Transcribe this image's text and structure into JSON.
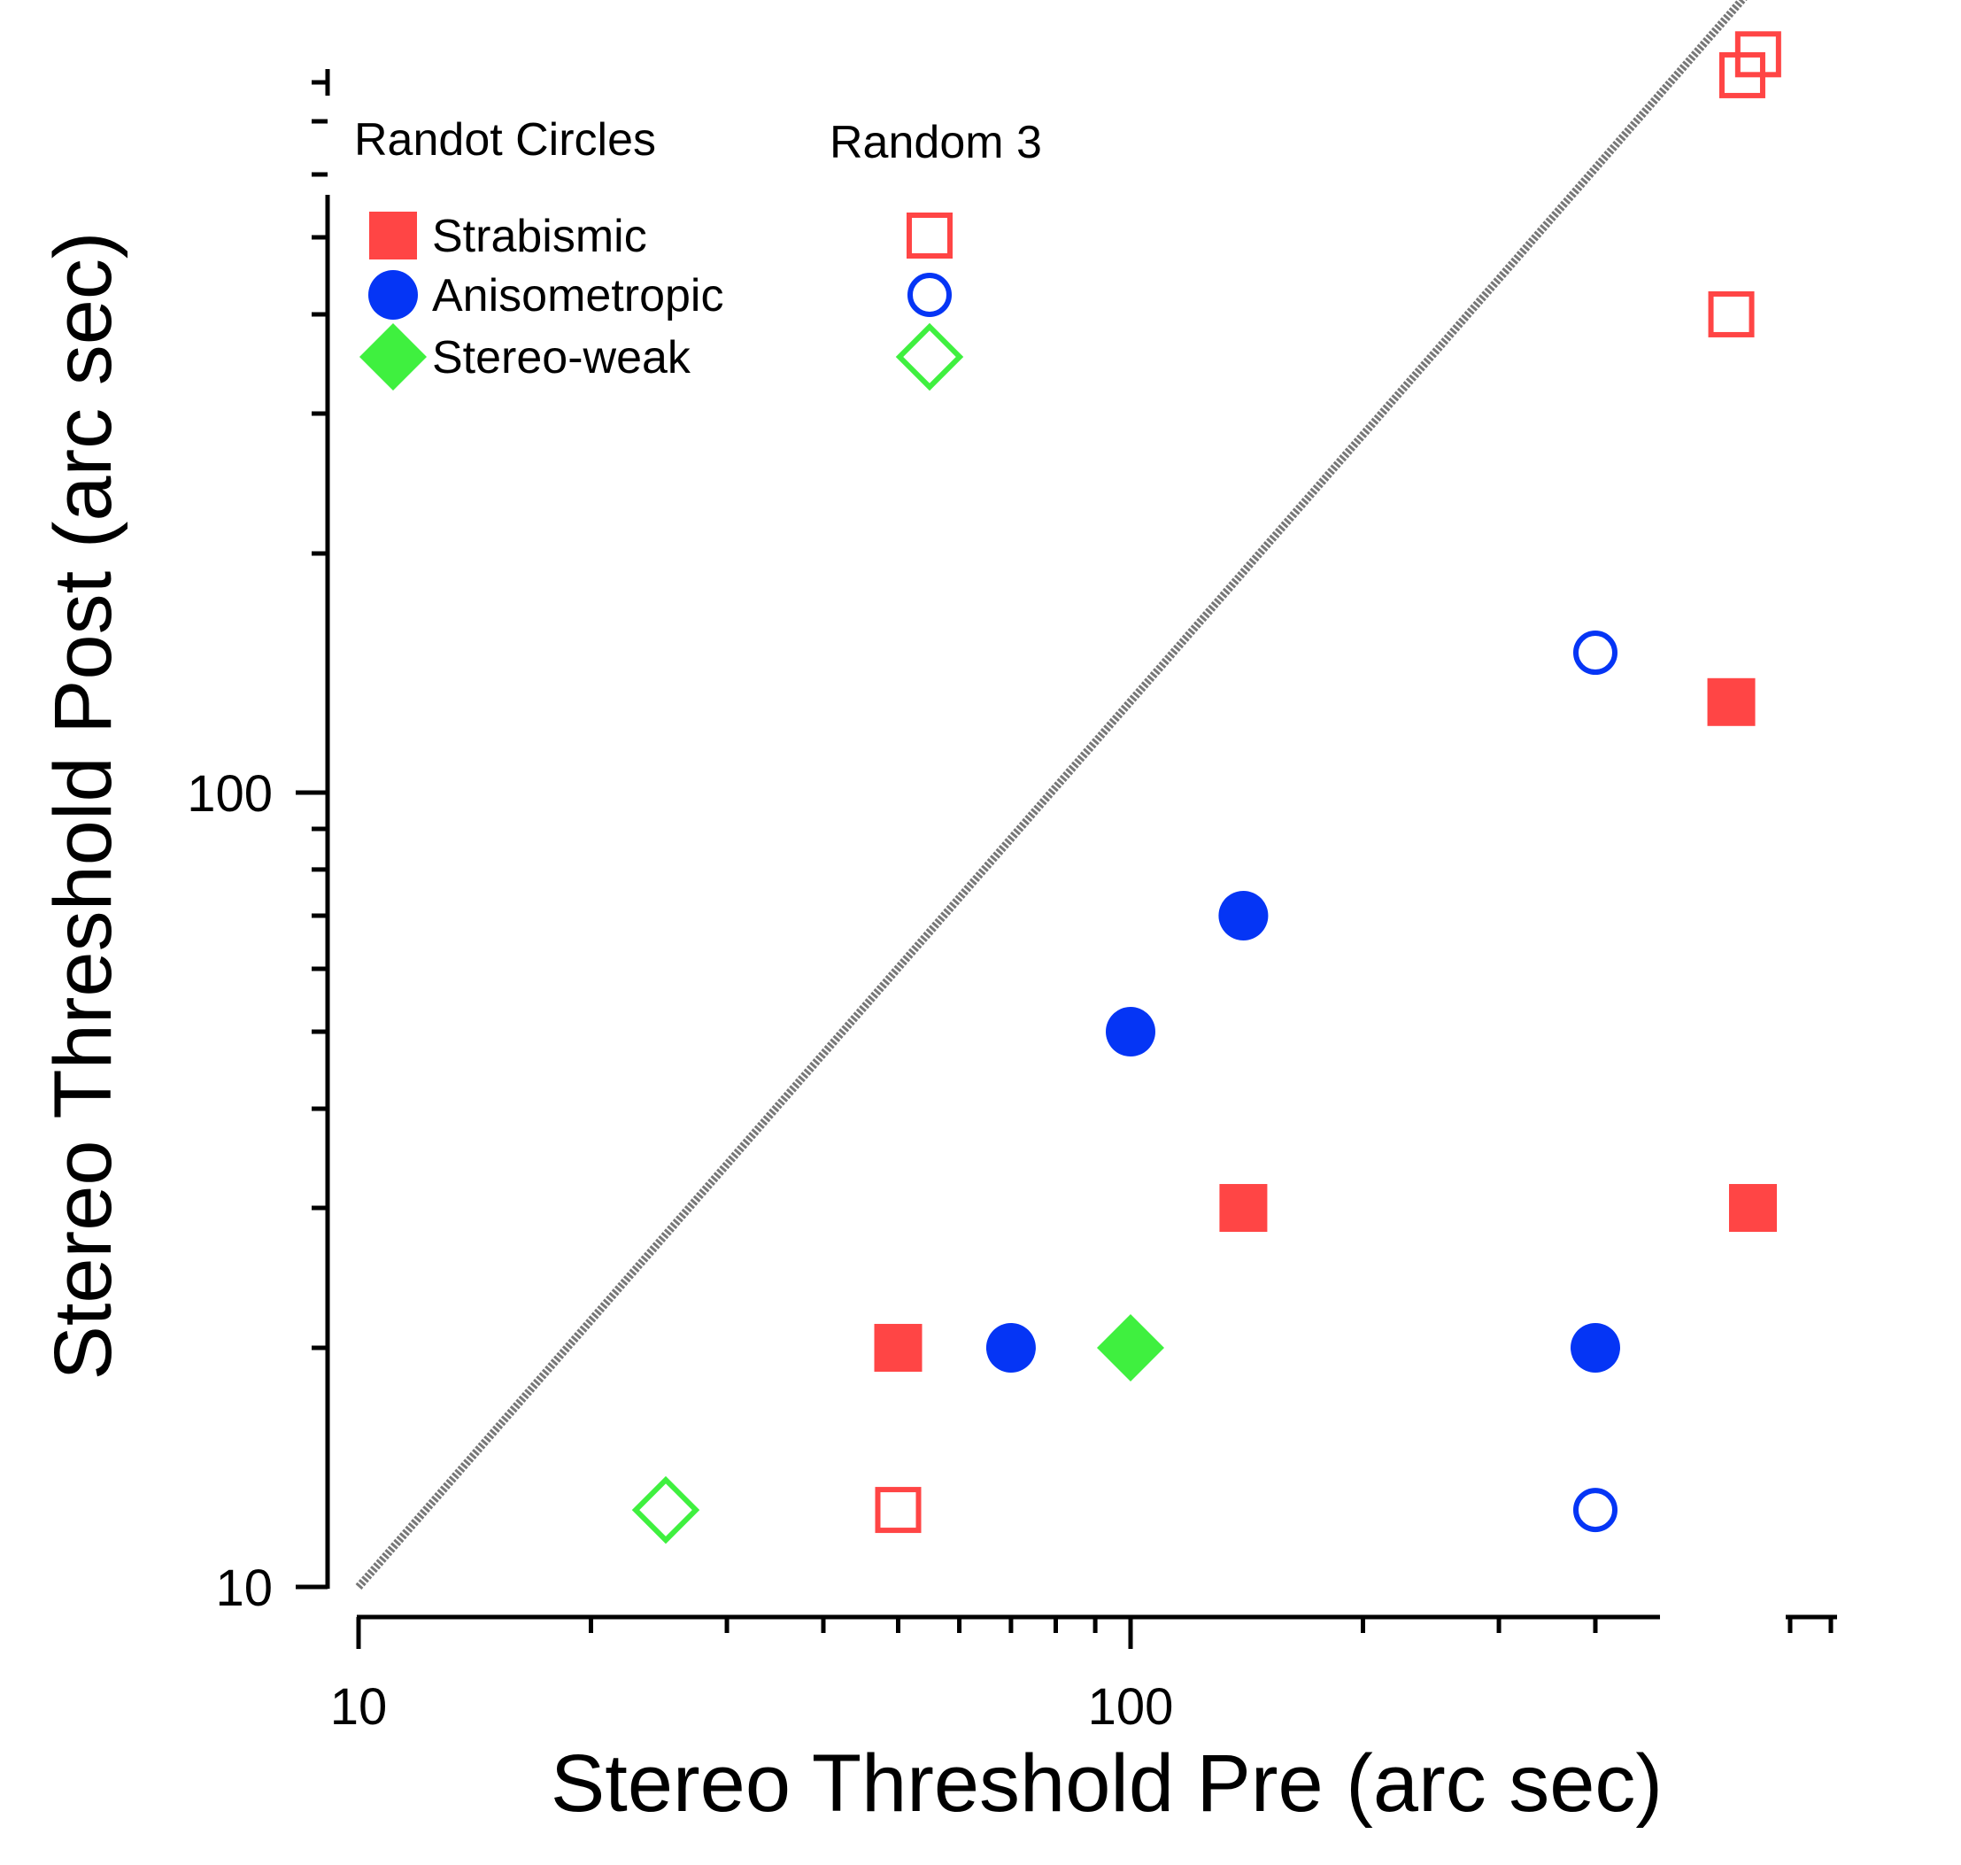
{
  "chart_data": {
    "type": "scatter",
    "xlabel": "Stereo Threshold Pre (arc sec)",
    "ylabel": "Stereo Threshold Post (arc sec)",
    "x_scale": "log",
    "y_scale": "log",
    "xlim": [
      10,
      700
    ],
    "ylim": [
      10,
      1000
    ],
    "x_tick_labels": [
      "10",
      "100"
    ],
    "y_tick_labels": [
      "10",
      "100"
    ],
    "x_axis_break": true,
    "y_axis_break": true,
    "legend": {
      "placement": "top-left",
      "column_headers": [
        "Randot Circles",
        "Random 3"
      ],
      "rows": [
        "Strabismic",
        "Anisometropic",
        "Stereo-weak"
      ]
    },
    "reference_line": {
      "type": "identity",
      "color": "#777777"
    },
    "colors": {
      "strabismic": "#ff4545",
      "anisometropic": "#0535f5",
      "stereo_weak": "#3ff03f"
    },
    "series": [
      {
        "name": "Strabismic",
        "test": "Randot Circles",
        "marker": "square-filled",
        "color": "#ff4545",
        "points": [
          [
            50,
            20
          ],
          [
            140,
            30
          ],
          [
            640,
            30
          ],
          [
            600,
            130
          ]
        ]
      },
      {
        "name": "Anisometropic",
        "test": "Randot Circles",
        "marker": "circle-filled",
        "color": "#0535f5",
        "points": [
          [
            70,
            20
          ],
          [
            100,
            50
          ],
          [
            140,
            70
          ],
          [
            400,
            20
          ]
        ]
      },
      {
        "name": "Stereo-weak",
        "test": "Randot Circles",
        "marker": "diamond-filled",
        "color": "#3ff03f",
        "points": [
          [
            100,
            20
          ]
        ]
      },
      {
        "name": "Strabismic",
        "test": "Random 3",
        "marker": "square-open",
        "color": "#ff4545",
        "points": [
          [
            50,
            12.5
          ],
          [
            600,
            400
          ],
          [
            620,
            800
          ],
          [
            650,
            850
          ]
        ]
      },
      {
        "name": "Anisometropic",
        "test": "Random 3",
        "marker": "circle-open",
        "color": "#0535f5",
        "points": [
          [
            400,
            12.5
          ],
          [
            400,
            150
          ]
        ]
      },
      {
        "name": "Stereo-weak",
        "test": "Random 3",
        "marker": "diamond-open",
        "color": "#3ff03f",
        "points": [
          [
            25,
            12.5
          ]
        ]
      }
    ]
  }
}
